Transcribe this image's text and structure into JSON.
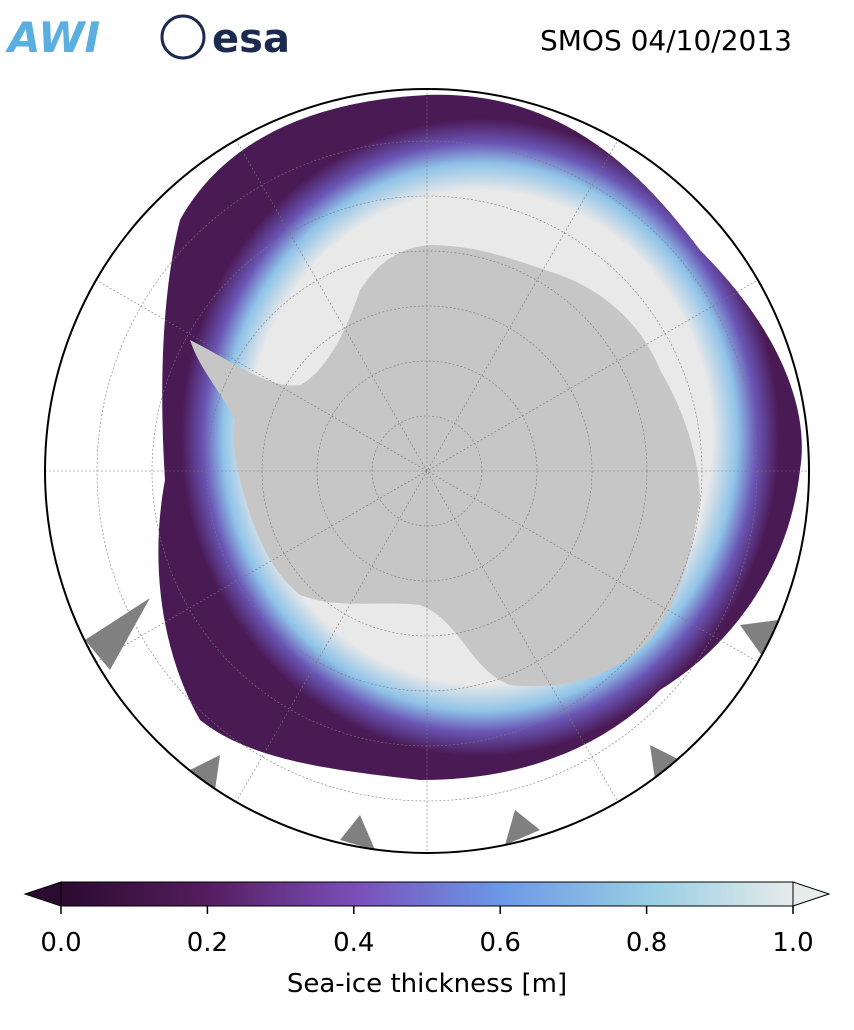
{
  "header": {
    "logos": [
      "AWI",
      "esa"
    ],
    "title": "SMOS 04/10/2013"
  },
  "colorbar": {
    "label": "Sea-ice thickness [m]",
    "lim": [
      0,
      1
    ],
    "ticks": [
      {
        "value": 0,
        "label": "0.0"
      },
      {
        "value": 0.2,
        "label": "0.2"
      },
      {
        "value": 0.4,
        "label": "0.4"
      },
      {
        "value": 0.6,
        "label": "0.6"
      },
      {
        "value": 0.8,
        "label": "0.8"
      },
      {
        "value": 1,
        "label": "1.0"
      }
    ]
  }
}
